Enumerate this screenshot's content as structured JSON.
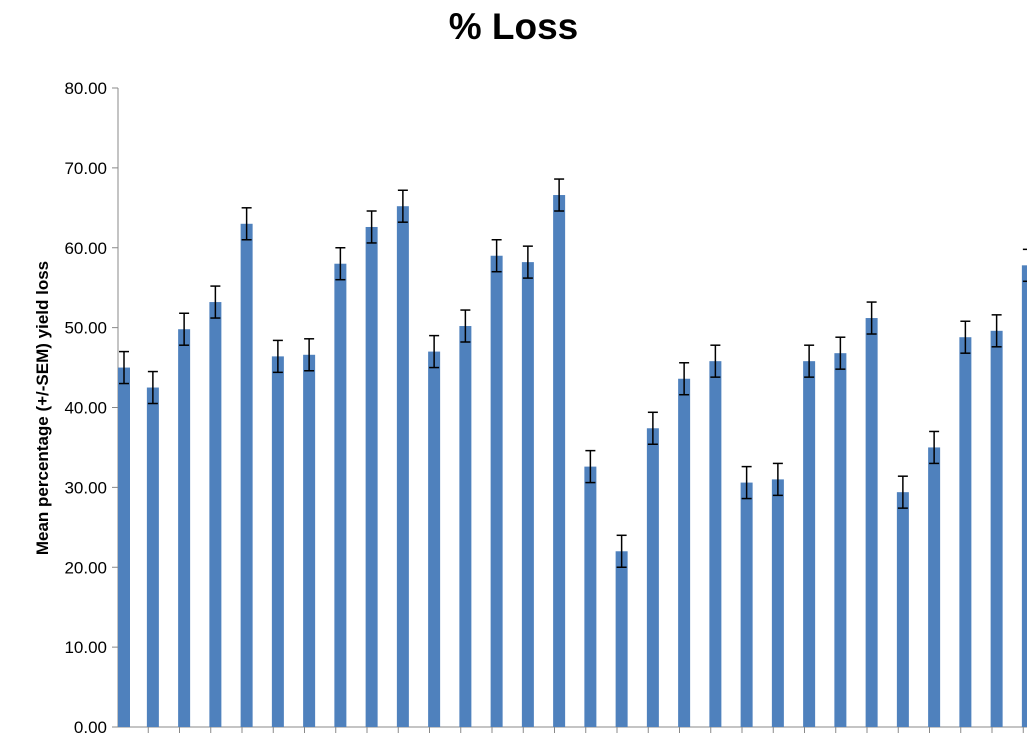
{
  "chart_data": {
    "type": "bar",
    "title": "% Loss",
    "xlabel": "",
    "ylabel": "Mean percentage (+/-SEM) yield loss",
    "ylim": [
      0,
      80
    ],
    "yticks": [
      "0.00",
      "10.00",
      "20.00",
      "30.00",
      "40.00",
      "50.00",
      "60.00",
      "70.00",
      "80.00"
    ],
    "grid": false,
    "legend": "none",
    "bar_color": "#4F81BD",
    "error_bar_color": "#000000",
    "series": [
      {
        "values": [
          45.0,
          42.5,
          49.8,
          53.2,
          63.0,
          46.4,
          46.6,
          58.0,
          62.6,
          65.2,
          47.0,
          50.2,
          59.0,
          58.2,
          66.6,
          32.6,
          22.0,
          37.4,
          43.6,
          45.8,
          30.6,
          31.0,
          45.8,
          46.8,
          51.2,
          29.4,
          35.0,
          48.8,
          49.6,
          57.8
        ],
        "errors": [
          2.0,
          2.0,
          2.0,
          2.0,
          2.0,
          2.0,
          2.0,
          2.0,
          2.0,
          2.0,
          2.0,
          2.0,
          2.0,
          2.0,
          2.0,
          2.0,
          2.0,
          2.0,
          2.0,
          2.0,
          2.0,
          2.0,
          2.0,
          2.0,
          2.0,
          2.0,
          2.0,
          2.0,
          2.0,
          2.0
        ]
      }
    ]
  }
}
